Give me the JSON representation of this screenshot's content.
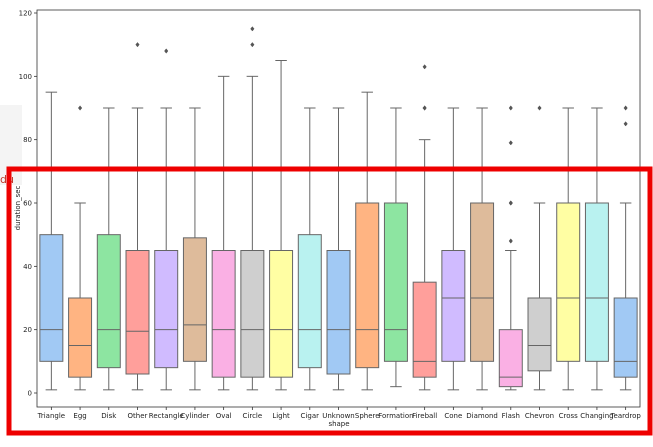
{
  "background_fragment": {
    "text": "du"
  },
  "chart_data": {
    "type": "boxplot",
    "xlabel": "shape",
    "ylabel": "duration_sec",
    "ylim": [
      -4,
      121
    ],
    "yticks": [
      0,
      20,
      40,
      60,
      80,
      100,
      120
    ],
    "grid": false,
    "categories": [
      "Triangle",
      "Egg",
      "Disk",
      "Other",
      "Rectangle",
      "Cylinder",
      "Oval",
      "Circle",
      "Light",
      "Cigar",
      "Unknown",
      "Sphere",
      "Formation",
      "Fireball",
      "Cone",
      "Diamond",
      "Flash",
      "Chevron",
      "Cross",
      "Changing",
      "Teardrop"
    ],
    "boxes": [
      {
        "category": "Triangle",
        "whislo": 1,
        "q1": 10,
        "med": 20,
        "q3": 50,
        "whishi": 95,
        "fliers": [],
        "color": "#a1c9f4"
      },
      {
        "category": "Egg",
        "whislo": 1,
        "q1": 5,
        "med": 15,
        "q3": 30,
        "whishi": 60,
        "fliers": [
          90
        ],
        "color": "#ffb482"
      },
      {
        "category": "Disk",
        "whislo": 1,
        "q1": 8,
        "med": 20,
        "q3": 50,
        "whishi": 90,
        "fliers": [],
        "color": "#8de5a1"
      },
      {
        "category": "Other",
        "whislo": 1,
        "q1": 6,
        "med": 19.5,
        "q3": 45,
        "whishi": 90,
        "fliers": [
          110
        ],
        "color": "#ff9f9b"
      },
      {
        "category": "Rectangle",
        "whislo": 1,
        "q1": 8,
        "med": 20,
        "q3": 45,
        "whishi": 90,
        "fliers": [
          108
        ],
        "color": "#d0bbff"
      },
      {
        "category": "Cylinder",
        "whislo": 1,
        "q1": 10,
        "med": 21.5,
        "q3": 49,
        "whishi": 90,
        "fliers": [],
        "color": "#debb9b"
      },
      {
        "category": "Oval",
        "whislo": 1,
        "q1": 5,
        "med": 20,
        "q3": 45,
        "whishi": 100,
        "fliers": [],
        "color": "#fab0e4"
      },
      {
        "category": "Circle",
        "whislo": 1,
        "q1": 5,
        "med": 20,
        "q3": 45,
        "whishi": 100,
        "fliers": [
          110,
          115
        ],
        "color": "#cfcfcf"
      },
      {
        "category": "Light",
        "whislo": 1,
        "q1": 5,
        "med": 20,
        "q3": 45,
        "whishi": 105,
        "fliers": [],
        "color": "#fffea3"
      },
      {
        "category": "Cigar",
        "whislo": 1,
        "q1": 8,
        "med": 20,
        "q3": 50,
        "whishi": 90,
        "fliers": [],
        "color": "#b9f2f0"
      },
      {
        "category": "Unknown",
        "whislo": 1,
        "q1": 6,
        "med": 20,
        "q3": 45,
        "whishi": 90,
        "fliers": [],
        "color": "#a1c9f4"
      },
      {
        "category": "Sphere",
        "whislo": 1,
        "q1": 8,
        "med": 20,
        "q3": 60,
        "whishi": 95,
        "fliers": [],
        "color": "#ffb482"
      },
      {
        "category": "Formation",
        "whislo": 2,
        "q1": 10,
        "med": 20,
        "q3": 60,
        "whishi": 90,
        "fliers": [],
        "color": "#8de5a1"
      },
      {
        "category": "Fireball",
        "whislo": 1,
        "q1": 5,
        "med": 10,
        "q3": 35,
        "whishi": 80,
        "fliers": [
          90,
          90,
          103
        ],
        "color": "#ff9f9b"
      },
      {
        "category": "Cone",
        "whislo": 1,
        "q1": 10,
        "med": 30,
        "q3": 45,
        "whishi": 90,
        "fliers": [],
        "color": "#d0bbff"
      },
      {
        "category": "Diamond",
        "whislo": 1,
        "q1": 10,
        "med": 30,
        "q3": 60,
        "whishi": 90,
        "fliers": [],
        "color": "#debb9b"
      },
      {
        "category": "Flash",
        "whislo": 1,
        "q1": 2,
        "med": 5,
        "q3": 20,
        "whishi": 45,
        "fliers": [
          48,
          60,
          60,
          79,
          90
        ],
        "color": "#fab0e4"
      },
      {
        "category": "Chevron",
        "whislo": 1,
        "q1": 7,
        "med": 15,
        "q3": 30,
        "whishi": 60,
        "fliers": [
          90
        ],
        "color": "#cfcfcf"
      },
      {
        "category": "Cross",
        "whislo": 1,
        "q1": 10,
        "med": 30,
        "q3": 60,
        "whishi": 90,
        "fliers": [],
        "color": "#fffea3"
      },
      {
        "category": "Changing",
        "whislo": 1,
        "q1": 10,
        "med": 30,
        "q3": 60,
        "whishi": 90,
        "fliers": [],
        "color": "#b9f2f0"
      },
      {
        "category": "Teardrop",
        "whislo": 1,
        "q1": 5,
        "med": 10,
        "q3": 30,
        "whishi": 60,
        "fliers": [
          85,
          90
        ],
        "color": "#a1c9f4"
      }
    ],
    "box_edge_color": "#666666",
    "highlight_color": "#ee0000"
  }
}
